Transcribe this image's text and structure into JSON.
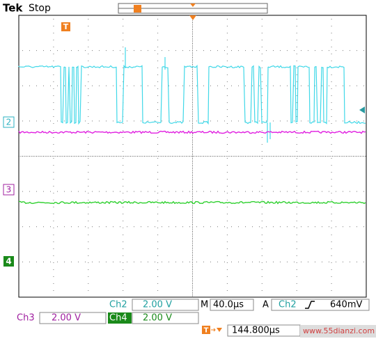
{
  "header": {
    "brand": "Tek",
    "status": "Stop"
  },
  "markers": {
    "trigger": "T",
    "ch2": "2",
    "ch3": "3",
    "ch4": "4"
  },
  "readout": {
    "ch2_label": "Ch2",
    "ch2_scale": "2.00 V",
    "timebase_label": "M",
    "timebase": "40.0µs",
    "trigger_label": "A",
    "trigger_source": "Ch2",
    "trigger_level": "640mV",
    "ch3_label": "Ch3",
    "ch3_scale": "2.00 V",
    "ch4_label": "Ch4",
    "ch4_scale": "2.00 V",
    "trigger_position": "144.800µs",
    "watermark": "www.55dianzi.com"
  }
}
